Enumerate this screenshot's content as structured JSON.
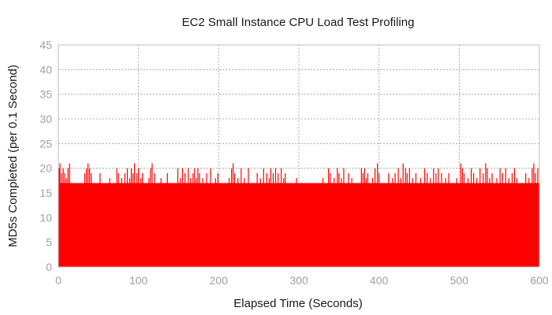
{
  "chart_data": {
    "type": "area",
    "title": "EC2 Small Instance CPU Load Test Profiling",
    "xlabel": "Elapsed Time (Seconds)",
    "ylabel": "MD5s Completed (per 0.1 Second)",
    "xlim": [
      0,
      600
    ],
    "ylim": [
      0,
      45
    ],
    "xticks": [
      "0",
      "100",
      "200",
      "300",
      "400",
      "500",
      "600"
    ],
    "yticks": [
      "0",
      "5",
      "10",
      "15",
      "20",
      "25",
      "30",
      "35",
      "40",
      "45"
    ],
    "grid": true,
    "legend": "none",
    "series": [
      {
        "baseline_value": 17,
        "spikes": [
          [
            1,
            20
          ],
          [
            2,
            21
          ],
          [
            4,
            19
          ],
          [
            6,
            20
          ],
          [
            8,
            19
          ],
          [
            10,
            18
          ],
          [
            12,
            20
          ],
          [
            14,
            21
          ],
          [
            33,
            19
          ],
          [
            35,
            20
          ],
          [
            37,
            21
          ],
          [
            39,
            20
          ],
          [
            41,
            19
          ],
          [
            52,
            19
          ],
          [
            64,
            18
          ],
          [
            73,
            20
          ],
          [
            75,
            19
          ],
          [
            79,
            18
          ],
          [
            83,
            19
          ],
          [
            86,
            20
          ],
          [
            89,
            18
          ],
          [
            91,
            20
          ],
          [
            93,
            19
          ],
          [
            95,
            21
          ],
          [
            98,
            19
          ],
          [
            100,
            20
          ],
          [
            103,
            18
          ],
          [
            105,
            19
          ],
          [
            113,
            18
          ],
          [
            115,
            20
          ],
          [
            117,
            21
          ],
          [
            120,
            19
          ],
          [
            128,
            18
          ],
          [
            136,
            19
          ],
          [
            149,
            20
          ],
          [
            152,
            18
          ],
          [
            155,
            20
          ],
          [
            158,
            19
          ],
          [
            162,
            20
          ],
          [
            165,
            18
          ],
          [
            168,
            19
          ],
          [
            170,
            20
          ],
          [
            172,
            18
          ],
          [
            174,
            20
          ],
          [
            176,
            19
          ],
          [
            180,
            18
          ],
          [
            185,
            19
          ],
          [
            190,
            20
          ],
          [
            196,
            18
          ],
          [
            199,
            19
          ],
          [
            213,
            18
          ],
          [
            216,
            20
          ],
          [
            218,
            21
          ],
          [
            220,
            19
          ],
          [
            224,
            18
          ],
          [
            228,
            20
          ],
          [
            232,
            18
          ],
          [
            237,
            20
          ],
          [
            248,
            19
          ],
          [
            252,
            18
          ],
          [
            256,
            20
          ],
          [
            260,
            19
          ],
          [
            263,
            18
          ],
          [
            265,
            20
          ],
          [
            268,
            19
          ],
          [
            271,
            20
          ],
          [
            274,
            19
          ],
          [
            278,
            20
          ],
          [
            281,
            18
          ],
          [
            283,
            19
          ],
          [
            297,
            18
          ],
          [
            330,
            18
          ],
          [
            337,
            20
          ],
          [
            339,
            19
          ],
          [
            344,
            18
          ],
          [
            348,
            20
          ],
          [
            350,
            19
          ],
          [
            353,
            18
          ],
          [
            356,
            20
          ],
          [
            362,
            19
          ],
          [
            366,
            18
          ],
          [
            378,
            20
          ],
          [
            380,
            19
          ],
          [
            382,
            20
          ],
          [
            384,
            18
          ],
          [
            386,
            19
          ],
          [
            392,
            18
          ],
          [
            395,
            20
          ],
          [
            398,
            21
          ],
          [
            400,
            19
          ],
          [
            412,
            19
          ],
          [
            417,
            18
          ],
          [
            420,
            19
          ],
          [
            424,
            20
          ],
          [
            427,
            18
          ],
          [
            430,
            21
          ],
          [
            433,
            20
          ],
          [
            435,
            19
          ],
          [
            438,
            20
          ],
          [
            442,
            18
          ],
          [
            446,
            19
          ],
          [
            452,
            18
          ],
          [
            457,
            20
          ],
          [
            460,
            19
          ],
          [
            464,
            18
          ],
          [
            468,
            20
          ],
          [
            471,
            19
          ],
          [
            474,
            20
          ],
          [
            478,
            19
          ],
          [
            483,
            18
          ],
          [
            487,
            19
          ],
          [
            497,
            18
          ],
          [
            502,
            21
          ],
          [
            504,
            20
          ],
          [
            506,
            19
          ],
          [
            511,
            18
          ],
          [
            515,
            20
          ],
          [
            518,
            19
          ],
          [
            522,
            18
          ],
          [
            526,
            20
          ],
          [
            530,
            19
          ],
          [
            533,
            21
          ],
          [
            535,
            20
          ],
          [
            538,
            18
          ],
          [
            541,
            19
          ],
          [
            547,
            18
          ],
          [
            551,
            20
          ],
          [
            554,
            19
          ],
          [
            558,
            20
          ],
          [
            562,
            18
          ],
          [
            566,
            19
          ],
          [
            569,
            20
          ],
          [
            572,
            18
          ],
          [
            583,
            19
          ],
          [
            587,
            18
          ],
          [
            591,
            20
          ],
          [
            593,
            21
          ],
          [
            595,
            19
          ],
          [
            598,
            20
          ]
        ]
      }
    ],
    "colors": {
      "fill": "#ff0000",
      "grid": "#9a9a9a",
      "tick_text": "#a0a0a0"
    }
  }
}
